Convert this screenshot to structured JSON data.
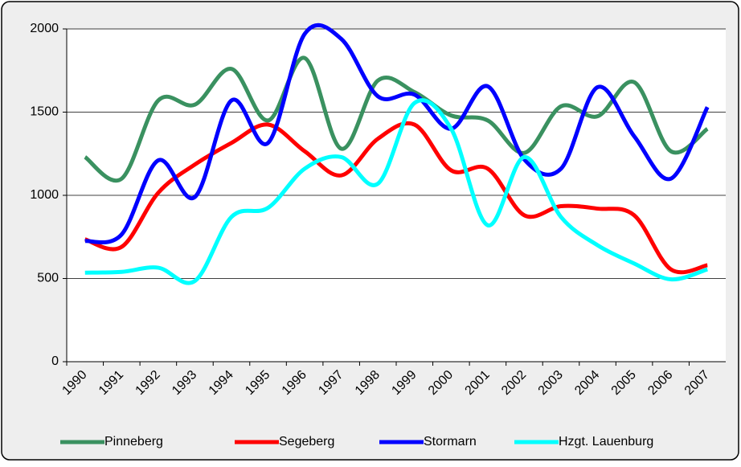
{
  "chart_data": {
    "type": "line",
    "smooth": true,
    "grid": true,
    "legend": "bottom",
    "categories": [
      "1990",
      "1991",
      "1992",
      "1993",
      "1994",
      "1995",
      "1996",
      "1997",
      "1998",
      "1999",
      "2000",
      "2001",
      "2002",
      "2003",
      "2004",
      "2005",
      "2006",
      "2007"
    ],
    "series": [
      {
        "name": "Pinneberg",
        "color": "#3a9160",
        "values": [
          1230,
          1100,
          1570,
          1545,
          1760,
          1450,
          1825,
          1280,
          1690,
          1620,
          1480,
          1450,
          1255,
          1535,
          1475,
          1680,
          1265,
          1400
        ]
      },
      {
        "name": "Segeberg",
        "color": "#ff0000",
        "values": [
          735,
          690,
          1015,
          1185,
          1315,
          1425,
          1265,
          1120,
          1340,
          1425,
          1150,
          1160,
          880,
          935,
          920,
          880,
          555,
          580
        ]
      },
      {
        "name": "Stormarn",
        "color": "#0000ff",
        "values": [
          725,
          765,
          1210,
          990,
          1570,
          1315,
          1970,
          1940,
          1595,
          1605,
          1400,
          1655,
          1215,
          1160,
          1650,
          1355,
          1100,
          1530
        ]
      },
      {
        "name": "Hzgt. Lauenburg",
        "color": "#00ffff",
        "values": [
          535,
          540,
          565,
          485,
          870,
          925,
          1160,
          1230,
          1070,
          1555,
          1400,
          820,
          1230,
          870,
          700,
          590,
          495,
          555
        ]
      }
    ],
    "ylim": [
      0,
      2000
    ],
    "yticks": [
      0,
      500,
      1000,
      1500,
      2000
    ]
  }
}
